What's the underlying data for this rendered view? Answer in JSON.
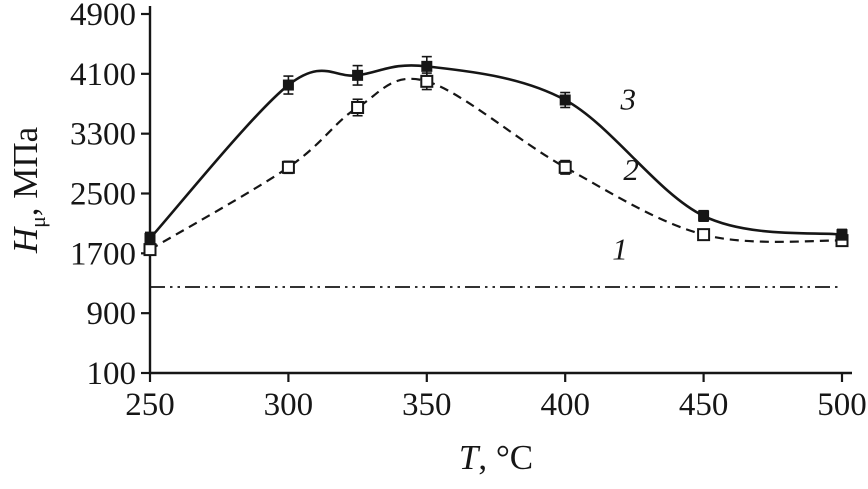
{
  "labels": {
    "y_symbol": "H",
    "y_sub": "μ",
    "y_rest": ", МПа",
    "x_symbol": "T",
    "x_rest": ", °C"
  },
  "chart_data": {
    "type": "line",
    "title": "",
    "xlabel": "T, °C",
    "ylabel": "Hμ, МПа",
    "xlim": [
      250,
      500
    ],
    "ylim": [
      100,
      4900
    ],
    "xticks": [
      250,
      300,
      350,
      400,
      450,
      500
    ],
    "yticks": [
      100,
      900,
      1700,
      2500,
      3300,
      4100,
      4900
    ],
    "grid": false,
    "legend": "none",
    "series": [
      {
        "name": "1",
        "label": "1",
        "line": "dashdotdot",
        "marker": "none",
        "x": [
          250,
          500
        ],
        "y": [
          1250,
          1250
        ]
      },
      {
        "name": "2",
        "label": "2",
        "line": "dashed",
        "marker": "open-square",
        "x": [
          250,
          300,
          325,
          350,
          400,
          450,
          500
        ],
        "y": [
          1750,
          2850,
          3650,
          4000,
          2850,
          1950,
          1870
        ],
        "yerr": [
          70,
          80,
          110,
          110,
          90,
          60,
          60
        ]
      },
      {
        "name": "3",
        "label": "3",
        "line": "solid",
        "marker": "filled-square",
        "x": [
          250,
          300,
          325,
          350,
          400,
          450,
          500
        ],
        "y": [
          1900,
          3950,
          4080,
          4200,
          3750,
          2200,
          1950
        ],
        "yerr": [
          80,
          120,
          130,
          130,
          100,
          70,
          70
        ]
      }
    ],
    "annotations": [
      {
        "text": "3",
        "x": 420,
        "y": 3620
      },
      {
        "text": "2",
        "x": 421,
        "y": 2680
      },
      {
        "text": "1",
        "x": 417,
        "y": 1620
      }
    ]
  }
}
